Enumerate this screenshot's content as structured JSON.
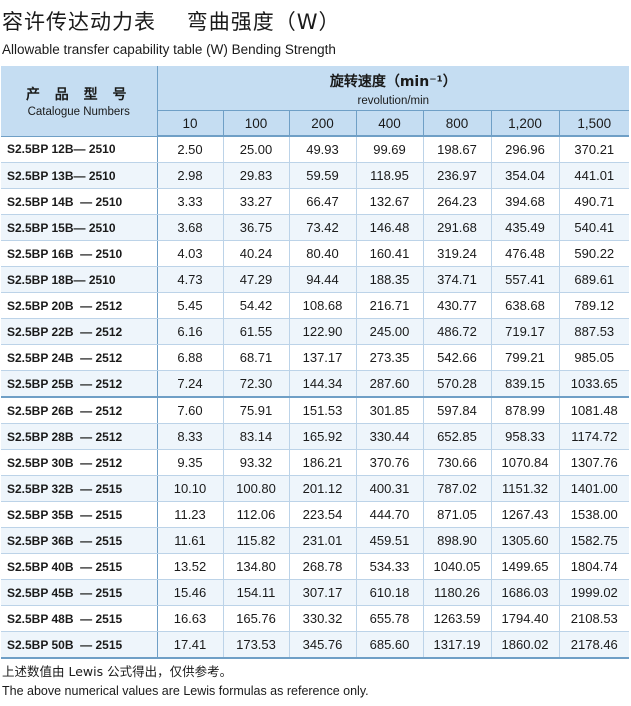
{
  "title_cn": "容许传达动力表    弯曲强度（W）",
  "title_en": "Allowable transfer capability table (W) Bending Strength",
  "header": {
    "product_cn": "产 品 型 号",
    "product_en": "Catalogue Numbers",
    "speed_cn": "旋转速度（min⁻¹）",
    "speed_en": "revolution/min",
    "rpm": [
      "10",
      "100",
      "200",
      "400",
      "800",
      "1,200",
      "1,500"
    ]
  },
  "rows": [
    {
      "model": "S2.5BP 12B— 2510",
      "values": [
        "2.50",
        "25.00",
        "49.93",
        "99.69",
        "198.67",
        "296.96",
        "370.21"
      ]
    },
    {
      "model": "S2.5BP 13B— 2510",
      "values": [
        "2.98",
        "29.83",
        "59.59",
        "118.95",
        "236.97",
        "354.04",
        "441.01"
      ]
    },
    {
      "model": "S2.5BP 14B  — 2510",
      "values": [
        "3.33",
        "33.27",
        "66.47",
        "132.67",
        "264.23",
        "394.68",
        "490.71"
      ]
    },
    {
      "model": "S2.5BP 15B— 2510",
      "values": [
        "3.68",
        "36.75",
        "73.42",
        "146.48",
        "291.68",
        "435.49",
        "540.41"
      ]
    },
    {
      "model": "S2.5BP 16B  — 2510",
      "values": [
        "4.03",
        "40.24",
        "80.40",
        "160.41",
        "319.24",
        "476.48",
        "590.22"
      ]
    },
    {
      "model": "S2.5BP 18B— 2510",
      "values": [
        "4.73",
        "47.29",
        "94.44",
        "188.35",
        "374.71",
        "557.41",
        "689.61"
      ]
    },
    {
      "model": "S2.5BP 20B  — 2512",
      "values": [
        "5.45",
        "54.42",
        "108.68",
        "216.71",
        "430.77",
        "638.68",
        "789.12"
      ]
    },
    {
      "model": "S2.5BP 22B  — 2512",
      "values": [
        "6.16",
        "61.55",
        "122.90",
        "245.00",
        "486.72",
        "719.17",
        "887.53"
      ]
    },
    {
      "model": "S2.5BP 24B  — 2512",
      "values": [
        "6.88",
        "68.71",
        "137.17",
        "273.35",
        "542.66",
        "799.21",
        "985.05"
      ]
    },
    {
      "model": "S2.5BP 25B  — 2512",
      "values": [
        "7.24",
        "72.30",
        "144.34",
        "287.60",
        "570.28",
        "839.15",
        "1033.65"
      ]
    },
    {
      "model": "S2.5BP 26B  — 2512",
      "values": [
        "7.60",
        "75.91",
        "151.53",
        "301.85",
        "597.84",
        "878.99",
        "1081.48"
      ]
    },
    {
      "model": "S2.5BP 28B  — 2512",
      "values": [
        "8.33",
        "83.14",
        "165.92",
        "330.44",
        "652.85",
        "958.33",
        "1174.72"
      ]
    },
    {
      "model": "S2.5BP 30B  — 2512",
      "values": [
        "9.35",
        "93.32",
        "186.21",
        "370.76",
        "730.66",
        "1070.84",
        "1307.76"
      ]
    },
    {
      "model": "S2.5BP 32B  — 2515",
      "values": [
        "10.10",
        "100.80",
        "201.12",
        "400.31",
        "787.02",
        "1151.32",
        "1401.00"
      ]
    },
    {
      "model": "S2.5BP 35B  — 2515",
      "values": [
        "11.23",
        "112.06",
        "223.54",
        "444.70",
        "871.05",
        "1267.43",
        "1538.00"
      ]
    },
    {
      "model": "S2.5BP 36B  — 2515",
      "values": [
        "11.61",
        "115.82",
        "231.01",
        "459.51",
        "898.90",
        "1305.60",
        "1582.75"
      ]
    },
    {
      "model": "S2.5BP 40B  — 2515",
      "values": [
        "13.52",
        "134.80",
        "268.78",
        "534.33",
        "1040.05",
        "1499.65",
        "1804.74"
      ]
    },
    {
      "model": "S2.5BP 45B  — 2515",
      "values": [
        "15.46",
        "154.11",
        "307.17",
        "610.18",
        "1180.26",
        "1686.03",
        "1999.02"
      ]
    },
    {
      "model": "S2.5BP 48B  — 2515",
      "values": [
        "16.63",
        "165.76",
        "330.32",
        "655.78",
        "1263.59",
        "1794.40",
        "2108.53"
      ]
    },
    {
      "model": "S2.5BP 50B  — 2515",
      "values": [
        "17.41",
        "173.53",
        "345.76",
        "685.60",
        "1317.19",
        "1860.02",
        "2178.46"
      ]
    }
  ],
  "note_cn": "上述数值由 Lewis 公式得出，仅供参考。",
  "note_en": "The above numerical values are Lewis formulas as reference only."
}
